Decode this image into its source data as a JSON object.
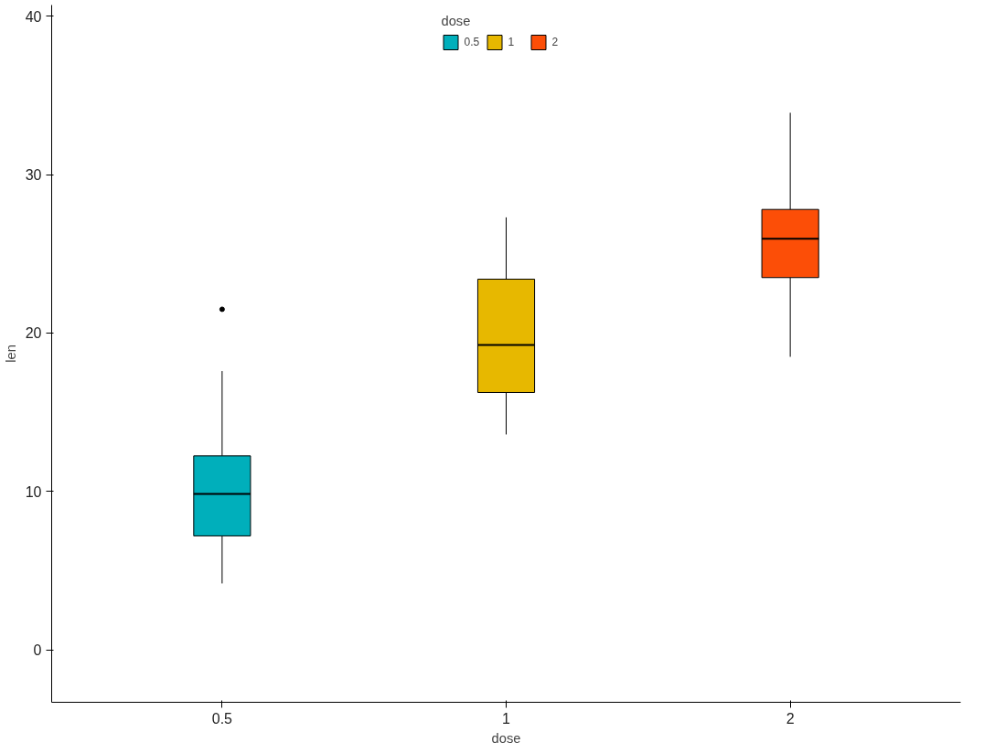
{
  "chart_data": {
    "type": "box",
    "xlabel": "dose",
    "ylabel": "len",
    "legend_title": "dose",
    "legend": "top",
    "categories": [
      "0.5",
      "1",
      "2"
    ],
    "ylim": [
      -3.3,
      40.7
    ],
    "yticks": [
      0,
      10,
      20,
      30,
      40
    ],
    "grid": false,
    "series": [
      {
        "name": "0.5",
        "color": "#00afbb",
        "boxes": [
          {
            "low": 4.2,
            "q1": 7.2,
            "median": 9.85,
            "q3": 12.25,
            "high": 17.6,
            "outliers": [
              21.5
            ]
          },
          null,
          null
        ]
      },
      {
        "name": "1",
        "color": "#e7b800",
        "boxes": [
          null,
          {
            "low": 13.6,
            "q1": 16.25,
            "median": 19.25,
            "q3": 23.4,
            "high": 27.3
          },
          null
        ]
      },
      {
        "name": "2",
        "color": "#fc4e07",
        "boxes": [
          null,
          null,
          {
            "low": 18.5,
            "q1": 23.5,
            "median": 25.95,
            "q3": 27.8,
            "high": 33.9
          }
        ]
      }
    ]
  }
}
